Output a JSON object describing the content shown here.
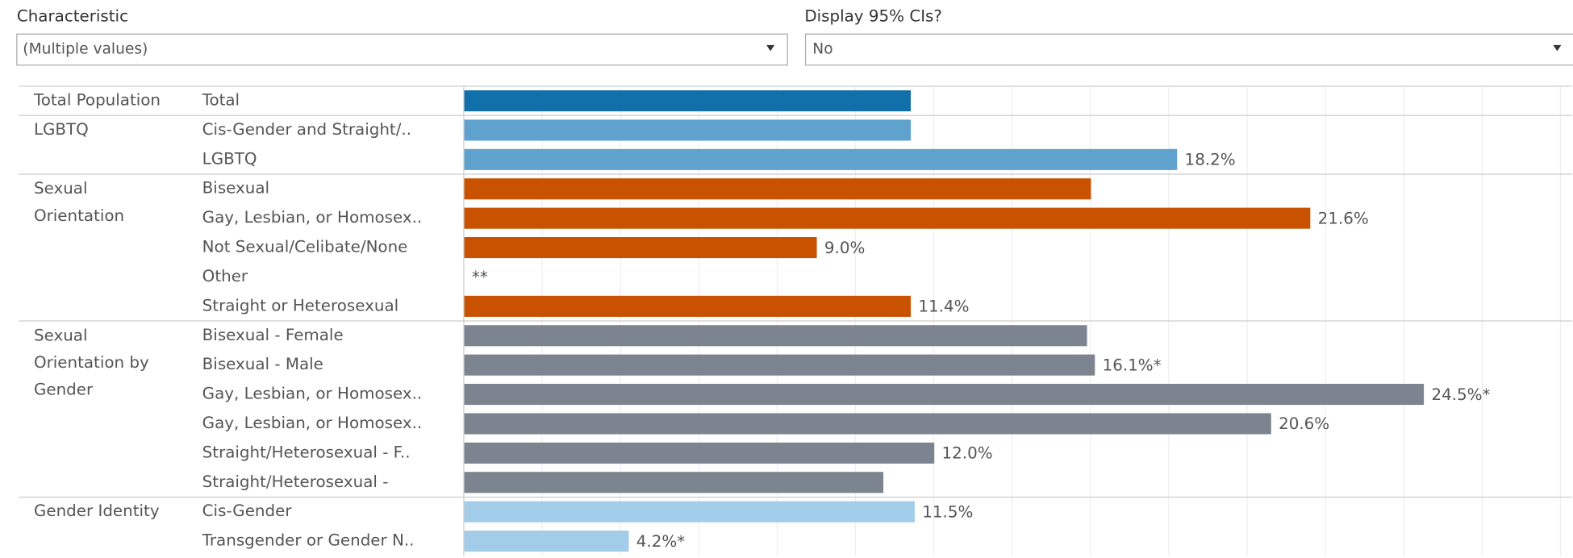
{
  "filters": [
    {
      "label": "Characteristic",
      "value": "(Multiple values)"
    },
    {
      "label": "Display 95% CIs?",
      "value": "No"
    }
  ],
  "chart_data": {
    "type": "bar",
    "orientation": "horizontal",
    "xlim": [
      0,
      28.3
    ],
    "xticks": [
      0,
      2,
      4,
      6,
      8,
      10,
      12,
      14,
      16,
      18,
      20,
      22,
      24,
      26,
      28
    ],
    "grid": true,
    "groups": [
      {
        "name": "Total Population",
        "color": "#1170aa",
        "categories": [
          "Total"
        ],
        "values": [
          11.4
        ],
        "value_labels": [
          null
        ]
      },
      {
        "name": "LGBTQ",
        "color": "#5fa2ce",
        "categories": [
          "Cis-Gender and Straight/..",
          "LGBTQ"
        ],
        "values": [
          11.4,
          18.2
        ],
        "value_labels": [
          null,
          "18.2%"
        ]
      },
      {
        "name": "Sexual Orientation",
        "color": "#c85200",
        "categories": [
          "Bisexual",
          "Gay, Lesbian, or Homosex..",
          "Not Sexual/Celibate/None",
          "Other",
          "Straight or Heterosexual"
        ],
        "values": [
          16.0,
          21.6,
          9.0,
          null,
          11.4
        ],
        "value_labels": [
          null,
          "21.6%",
          "9.0%",
          "**",
          "11.4%"
        ]
      },
      {
        "name": "Sexual Orientation by Gender",
        "color": "#7b848f",
        "categories": [
          "Bisexual - Female",
          "Bisexual - Male",
          "Gay, Lesbian, or Homosex..",
          "Gay, Lesbian, or Homosex..",
          "Straight/Heterosexual - F..",
          "Straight/Heterosexual -"
        ],
        "values": [
          15.9,
          16.1,
          24.5,
          20.6,
          12.0,
          10.7
        ],
        "value_labels": [
          null,
          "16.1%*",
          "24.5%*",
          "20.6%",
          "12.0%",
          null
        ]
      },
      {
        "name": "Gender Identity",
        "color": "#a3cce9",
        "categories": [
          "Cis-Gender",
          "Transgender or Gender N.."
        ],
        "values": [
          11.5,
          4.2
        ],
        "value_labels": [
          "11.5%",
          "4.2%*"
        ]
      }
    ]
  }
}
